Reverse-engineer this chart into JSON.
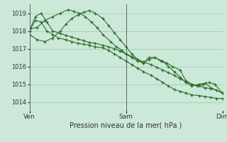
{
  "xlabel": "Pression niveau de la mer( hPa )",
  "bg_color": "#cce8d8",
  "grid_color": "#99ccaa",
  "line_color": "#2d6e2d",
  "ylim": [
    1013.5,
    1019.5
  ],
  "yticks": [
    1014,
    1015,
    1016,
    1017,
    1018,
    1019
  ],
  "xtick_labels": [
    "Ven",
    "Sam",
    "Dim"
  ],
  "xtick_positions": [
    0.0,
    0.5,
    1.0
  ],
  "series": [
    {
      "x": [
        0.0,
        0.03,
        0.06,
        0.09,
        0.12,
        0.15,
        0.19,
        0.22,
        0.25,
        0.28,
        0.31,
        0.34,
        0.38,
        0.41,
        0.44,
        0.47,
        0.5,
        0.53,
        0.56,
        0.59,
        0.63,
        0.66,
        0.69,
        0.72,
        0.75,
        0.78,
        0.81,
        0.84,
        0.88,
        0.91,
        0.94,
        0.97,
        1.0
      ],
      "y": [
        1018.0,
        1018.6,
        1018.5,
        1018.0,
        1017.8,
        1017.6,
        1017.5,
        1017.4,
        1017.3,
        1017.25,
        1017.2,
        1017.1,
        1017.05,
        1016.9,
        1016.7,
        1016.5,
        1016.3,
        1016.1,
        1015.9,
        1015.7,
        1015.5,
        1015.3,
        1015.1,
        1014.9,
        1014.7,
        1014.6,
        1014.5,
        1014.4,
        1014.35,
        1014.3,
        1014.25,
        1014.2,
        1014.2
      ]
    },
    {
      "x": [
        0.0,
        0.03,
        0.06,
        0.09,
        0.12,
        0.16,
        0.19,
        0.22,
        0.25,
        0.28,
        0.31,
        0.34,
        0.38,
        0.41,
        0.44,
        0.47,
        0.5,
        0.53,
        0.56,
        0.59,
        0.63,
        0.66,
        0.69,
        0.72,
        0.75,
        0.78,
        0.81,
        0.84,
        0.88,
        0.91,
        0.94,
        0.97,
        1.0
      ],
      "y": [
        1018.0,
        1018.8,
        1019.0,
        1018.5,
        1018.0,
        1017.85,
        1017.75,
        1017.65,
        1017.55,
        1017.45,
        1017.35,
        1017.3,
        1017.2,
        1017.1,
        1017.0,
        1016.85,
        1016.7,
        1016.55,
        1016.4,
        1016.25,
        1016.1,
        1015.95,
        1015.8,
        1015.65,
        1015.5,
        1015.3,
        1015.15,
        1015.0,
        1014.9,
        1014.8,
        1014.75,
        1014.65,
        1014.5
      ]
    },
    {
      "x": [
        0.0,
        0.04,
        0.08,
        0.12,
        0.16,
        0.2,
        0.23,
        0.26,
        0.29,
        0.32,
        0.35,
        0.38,
        0.42,
        0.45,
        0.48,
        0.5,
        0.53,
        0.56,
        0.59,
        0.62,
        0.65,
        0.68,
        0.71,
        0.74,
        0.78,
        0.81,
        0.84,
        0.87,
        0.9,
        0.93,
        0.96,
        1.0
      ],
      "y": [
        1018.1,
        1018.2,
        1018.6,
        1018.8,
        1019.0,
        1019.2,
        1019.1,
        1019.0,
        1018.8,
        1018.5,
        1018.2,
        1017.8,
        1017.4,
        1017.1,
        1016.9,
        1016.7,
        1016.5,
        1016.3,
        1016.2,
        1016.4,
        1016.5,
        1016.3,
        1016.2,
        1016.0,
        1015.8,
        1015.2,
        1015.0,
        1014.9,
        1015.0,
        1015.1,
        1015.0,
        1014.5
      ]
    },
    {
      "x": [
        0.0,
        0.04,
        0.08,
        0.12,
        0.16,
        0.19,
        0.22,
        0.25,
        0.28,
        0.31,
        0.34,
        0.38,
        0.41,
        0.44,
        0.47,
        0.5,
        0.53,
        0.56,
        0.59,
        0.62,
        0.65,
        0.69,
        0.72,
        0.75,
        0.78,
        0.81,
        0.84,
        0.88,
        0.91,
        0.94,
        1.0
      ],
      "y": [
        1017.8,
        1017.5,
        1017.4,
        1017.6,
        1018.0,
        1018.4,
        1018.7,
        1018.9,
        1019.05,
        1019.15,
        1019.0,
        1018.7,
        1018.3,
        1017.9,
        1017.5,
        1017.1,
        1016.7,
        1016.4,
        1016.2,
        1016.5,
        1016.5,
        1016.3,
        1016.0,
        1015.7,
        1015.4,
        1015.1,
        1014.9,
        1015.0,
        1015.05,
        1014.8,
        1014.5
      ]
    }
  ]
}
